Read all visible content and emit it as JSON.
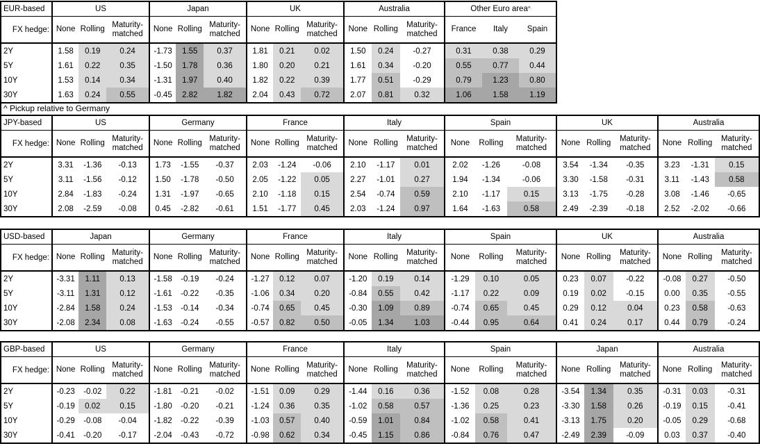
{
  "footnote": "^ Pickup relative to Germany",
  "fx_hedge_label": "FX hedge:",
  "fx_hedge_options": [
    "None",
    "Rolling",
    "Maturity-matched"
  ],
  "maturities": [
    "2Y",
    "5Y",
    "10Y",
    "30Y"
  ],
  "colors": {
    "shade_light": "#d9d9d9",
    "shade_medium": "#bfbfbf",
    "shade_dark": "#a6a6a6",
    "border": "#000000",
    "background": "#ffffff"
  },
  "shade_rule": {
    "white_below": 0,
    "light_below": 0.5,
    "medium_below": 1.0,
    "dark_at_or_above": 1.0
  },
  "tables": [
    {
      "label": "EUR-based",
      "groups": [
        {
          "name": "US",
          "subcols": [
            "None",
            "Rolling",
            "Maturity-matched"
          ],
          "shade_all": false,
          "rows": [
            [
              "1.58",
              "0.19",
              "0.24"
            ],
            [
              "1.61",
              "0.22",
              "0.35"
            ],
            [
              "1.53",
              "0.14",
              "0.34"
            ],
            [
              "1.63",
              "0.24",
              "0.55"
            ]
          ]
        },
        {
          "name": "Japan",
          "subcols": [
            "None",
            "Rolling",
            "Maturity-matched"
          ],
          "shade_all": false,
          "rows": [
            [
              "-1.73",
              "1.55",
              "0.37"
            ],
            [
              "-1.50",
              "1.78",
              "0.36"
            ],
            [
              "-1.31",
              "1.97",
              "0.40"
            ],
            [
              "-0.45",
              "2.82",
              "1.82"
            ]
          ]
        },
        {
          "name": "UK",
          "subcols": [
            "None",
            "Rolling",
            "Maturity-matched"
          ],
          "shade_all": false,
          "rows": [
            [
              "1.81",
              "0.21",
              "0.02"
            ],
            [
              "1.80",
              "0.20",
              "0.21"
            ],
            [
              "1.82",
              "0.22",
              "0.39"
            ],
            [
              "2.04",
              "0.43",
              "0.72"
            ]
          ]
        },
        {
          "name": "Australia",
          "subcols": [
            "None",
            "Rolling",
            "Maturity-matched"
          ],
          "shade_all": false,
          "rows": [
            [
              "1.50",
              "0.24",
              "-0.27"
            ],
            [
              "1.61",
              "0.34",
              "-0.20"
            ],
            [
              "1.77",
              "0.51",
              "-0.29"
            ],
            [
              "2.07",
              "0.81",
              "0.32"
            ]
          ]
        },
        {
          "name": "Other Euro area",
          "name_sup": "^",
          "subcols": [
            "France",
            "Italy",
            "Spain"
          ],
          "shade_all": true,
          "rows": [
            [
              "0.31",
              "0.38",
              "0.29"
            ],
            [
              "0.55",
              "0.77",
              "0.44"
            ],
            [
              "0.79",
              "1.23",
              "0.80"
            ],
            [
              "1.06",
              "1.58",
              "1.19"
            ]
          ]
        }
      ]
    },
    {
      "label": "JPY-based",
      "groups": [
        {
          "name": "US",
          "subcols": [
            "None",
            "Rolling",
            "Maturity-matched"
          ],
          "shade_all": false,
          "rows": [
            [
              "3.31",
              "-1.36",
              "-0.13"
            ],
            [
              "3.11",
              "-1.56",
              "-0.12"
            ],
            [
              "2.84",
              "-1.83",
              "-0.24"
            ],
            [
              "2.08",
              "-2.59",
              "-0.08"
            ]
          ]
        },
        {
          "name": "Germany",
          "subcols": [
            "None",
            "Rolling",
            "Maturity-matched"
          ],
          "shade_all": false,
          "rows": [
            [
              "1.73",
              "-1.55",
              "-0.37"
            ],
            [
              "1.50",
              "-1.78",
              "-0.50"
            ],
            [
              "1.31",
              "-1.97",
              "-0.65"
            ],
            [
              "0.45",
              "-2.82",
              "-0.61"
            ]
          ]
        },
        {
          "name": "France",
          "subcols": [
            "None",
            "Rolling",
            "Maturity-matched"
          ],
          "shade_all": false,
          "rows": [
            [
              "2.03",
              "-1.24",
              "-0.06"
            ],
            [
              "2.05",
              "-1.22",
              "0.05"
            ],
            [
              "2.10",
              "-1.18",
              "0.15"
            ],
            [
              "1.51",
              "-1.77",
              "0.45"
            ]
          ]
        },
        {
          "name": "Italy",
          "subcols": [
            "None",
            "Rolling",
            "Maturity-matched"
          ],
          "shade_all": false,
          "rows": [
            [
              "2.10",
              "-1.17",
              "0.01"
            ],
            [
              "2.27",
              "-1.01",
              "0.27"
            ],
            [
              "2.54",
              "-0.74",
              "0.59"
            ],
            [
              "2.03",
              "-1.24",
              "0.97"
            ]
          ]
        },
        {
          "name": "Spain",
          "subcols": [
            "None",
            "Rolling",
            "Maturity-matched"
          ],
          "shade_all": false,
          "rows": [
            [
              "2.02",
              "-1.26",
              "-0.08"
            ],
            [
              "1.94",
              "-1.34",
              "-0.06"
            ],
            [
              "2.10",
              "-1.17",
              "0.15"
            ],
            [
              "1.64",
              "-1.63",
              "0.58"
            ]
          ]
        },
        {
          "name": "UK",
          "subcols": [
            "None",
            "Rolling",
            "Maturity-matched"
          ],
          "shade_all": false,
          "rows": [
            [
              "3.54",
              "-1.34",
              "-0.35"
            ],
            [
              "3.30",
              "-1.58",
              "-0.31"
            ],
            [
              "3.13",
              "-1.75",
              "-0.28"
            ],
            [
              "2.49",
              "-2.39",
              "-0.18"
            ]
          ]
        },
        {
          "name": "Australia",
          "subcols": [
            "None",
            "Rolling",
            "Maturity-matched"
          ],
          "shade_all": false,
          "rows": [
            [
              "3.23",
              "-1.31",
              "0.15"
            ],
            [
              "3.11",
              "-1.43",
              "0.58"
            ],
            [
              "3.08",
              "-1.46",
              "-0.65"
            ],
            [
              "2.52",
              "-2.02",
              "-0.66"
            ]
          ]
        }
      ]
    },
    {
      "label": "USD-based",
      "groups": [
        {
          "name": "Japan",
          "subcols": [
            "None",
            "Rolling",
            "Maturity-matched"
          ],
          "shade_all": false,
          "rows": [
            [
              "-3.31",
              "1.11",
              "0.13"
            ],
            [
              "-3.11",
              "1.31",
              "0.12"
            ],
            [
              "-2.84",
              "1.58",
              "0.24"
            ],
            [
              "-2.08",
              "2.34",
              "0.08"
            ]
          ]
        },
        {
          "name": "Germany",
          "subcols": [
            "None",
            "Rolling",
            "Maturity-matched"
          ],
          "shade_all": false,
          "rows": [
            [
              "-1.58",
              "-0.19",
              "-0.24"
            ],
            [
              "-1.61",
              "-0.22",
              "-0.35"
            ],
            [
              "-1.53",
              "-0.14",
              "-0.34"
            ],
            [
              "-1.63",
              "-0.24",
              "-0.55"
            ]
          ]
        },
        {
          "name": "France",
          "subcols": [
            "None",
            "Rolling",
            "Maturity-matched"
          ],
          "shade_all": false,
          "rows": [
            [
              "-1.27",
              "0.12",
              "0.07"
            ],
            [
              "-1.06",
              "0.34",
              "0.20"
            ],
            [
              "-0.74",
              "0.65",
              "0.45"
            ],
            [
              "-0.57",
              "0.82",
              "0.50"
            ]
          ]
        },
        {
          "name": "Italy",
          "subcols": [
            "None",
            "Rolling",
            "Maturity-matched"
          ],
          "shade_all": false,
          "rows": [
            [
              "-1.20",
              "0.19",
              "0.14"
            ],
            [
              "-0.84",
              "0.55",
              "0.42"
            ],
            [
              "-0.30",
              "1.09",
              "0.89"
            ],
            [
              "-0.05",
              "1.34",
              "1.03"
            ]
          ]
        },
        {
          "name": "Spain",
          "subcols": [
            "None",
            "Rolling",
            "Maturity-matched"
          ],
          "shade_all": false,
          "rows": [
            [
              "-1.29",
              "0.10",
              "0.05"
            ],
            [
              "-1.17",
              "0.22",
              "0.09"
            ],
            [
              "-0.74",
              "0.65",
              "0.45"
            ],
            [
              "-0.44",
              "0.95",
              "0.64"
            ]
          ]
        },
        {
          "name": "UK",
          "subcols": [
            "None",
            "Rolling",
            "Maturity-matched"
          ],
          "shade_all": false,
          "rows": [
            [
              "0.23",
              "0.07",
              "-0.22"
            ],
            [
              "0.19",
              "0.02",
              "-0.15"
            ],
            [
              "0.29",
              "0.12",
              "0.04"
            ],
            [
              "0.41",
              "0.24",
              "0.17"
            ]
          ]
        },
        {
          "name": "Australia",
          "subcols": [
            "None",
            "Rolling",
            "Maturity-matched"
          ],
          "shade_all": false,
          "rows": [
            [
              "-0.08",
              "0.27",
              "-0.50"
            ],
            [
              "0.00",
              "0.35",
              "-0.55"
            ],
            [
              "0.23",
              "0.58",
              "-0.63"
            ],
            [
              "0.44",
              "0.79",
              "-0.24"
            ]
          ]
        }
      ]
    },
    {
      "label": "GBP-based",
      "groups": [
        {
          "name": "US",
          "subcols": [
            "None",
            "Rolling",
            "Maturity-matched"
          ],
          "shade_all": false,
          "rows": [
            [
              "-0.23",
              "-0.02",
              "0.22"
            ],
            [
              "-0.19",
              "0.02",
              "0.15"
            ],
            [
              "-0.29",
              "-0.08",
              "-0.04"
            ],
            [
              "-0.41",
              "-0.20",
              "-0.17"
            ]
          ]
        },
        {
          "name": "Germany",
          "subcols": [
            "None",
            "Rolling",
            "Maturity-matched"
          ],
          "shade_all": false,
          "rows": [
            [
              "-1.81",
              "-0.21",
              "-0.02"
            ],
            [
              "-1.80",
              "-0.20",
              "-0.21"
            ],
            [
              "-1.82",
              "-0.22",
              "-0.39"
            ],
            [
              "-2.04",
              "-0.43",
              "-0.72"
            ]
          ]
        },
        {
          "name": "France",
          "subcols": [
            "None",
            "Rolling",
            "Maturity-matched"
          ],
          "shade_all": false,
          "rows": [
            [
              "-1.51",
              "0.09",
              "0.29"
            ],
            [
              "-1.24",
              "0.36",
              "0.35"
            ],
            [
              "-1.03",
              "0.57",
              "0.40"
            ],
            [
              "-0.98",
              "0.62",
              "0.34"
            ]
          ]
        },
        {
          "name": "Italy",
          "subcols": [
            "None",
            "Rolling",
            "Maturity-matched"
          ],
          "shade_all": false,
          "rows": [
            [
              "-1.44",
              "0.16",
              "0.36"
            ],
            [
              "-1.02",
              "0.58",
              "0.57"
            ],
            [
              "-0.59",
              "1.01",
              "0.84"
            ],
            [
              "-0.45",
              "1.15",
              "0.86"
            ]
          ]
        },
        {
          "name": "Spain",
          "subcols": [
            "None",
            "Rolling",
            "Maturity-matched"
          ],
          "shade_all": false,
          "rows": [
            [
              "-1.52",
              "0.08",
              "0.28"
            ],
            [
              "-1.36",
              "0.25",
              "0.23"
            ],
            [
              "-1.02",
              "0.58",
              "0.41"
            ],
            [
              "-0.84",
              "0.76",
              "0.47"
            ]
          ]
        },
        {
          "name": "Japan",
          "subcols": [
            "None",
            "Rolling",
            "Maturity-matched"
          ],
          "shade_all": false,
          "rows": [
            [
              "-3.54",
              "1.34",
              "0.35"
            ],
            [
              "-3.30",
              "1.58",
              "0.26"
            ],
            [
              "-3.13",
              "1.75",
              "0.20"
            ],
            [
              "-2.49",
              "2.39",
              "-0.09"
            ]
          ]
        },
        {
          "name": "Australia",
          "subcols": [
            "None",
            "Rolling",
            "Maturity-matched"
          ],
          "shade_all": false,
          "rows": [
            [
              "-0.31",
              "0.03",
              "-0.31"
            ],
            [
              "-0.19",
              "0.15",
              "-0.41"
            ],
            [
              "-0.05",
              "0.29",
              "-0.68"
            ],
            [
              "0.03",
              "0.37",
              "-0.40"
            ]
          ]
        }
      ]
    }
  ]
}
